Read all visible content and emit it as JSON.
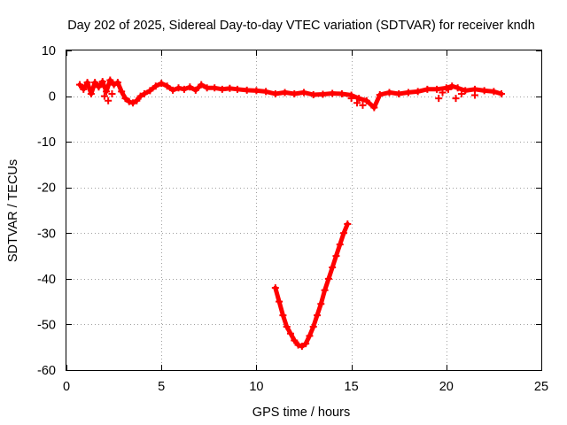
{
  "chart_data": {
    "type": "scatter",
    "title": "Day 202 of 2025, Sidereal Day-to-day VTEC variation (SDTVAR) for receiver kndh",
    "xlabel": "GPS time / hours",
    "ylabel": "SDTVAR / TECUs",
    "xlim": [
      0,
      25
    ],
    "ylim": [
      -60,
      10
    ],
    "xticks": [
      0,
      5,
      10,
      15,
      20,
      25
    ],
    "yticks": [
      10,
      0,
      -10,
      -20,
      -30,
      -40,
      -50,
      -60
    ],
    "grid": true,
    "grid_style": "dotted",
    "legend": "none",
    "series_color": "#ff0000",
    "series": [
      {
        "name": "main track",
        "points": [
          [
            0.7,
            2.5
          ],
          [
            0.9,
            1.5
          ],
          [
            1.1,
            3.0
          ],
          [
            1.3,
            0.5
          ],
          [
            1.5,
            3.0
          ],
          [
            1.7,
            2.0
          ],
          [
            1.9,
            3.2
          ],
          [
            2.1,
            1.0
          ],
          [
            2.3,
            3.5
          ],
          [
            2.5,
            2.5
          ],
          [
            2.7,
            3.0
          ],
          [
            2.9,
            1.0
          ],
          [
            3.1,
            -0.5
          ],
          [
            3.3,
            -1.2
          ],
          [
            3.5,
            -1.5
          ],
          [
            3.7,
            -1.0
          ],
          [
            3.9,
            0.0
          ],
          [
            4.1,
            0.5
          ],
          [
            4.4,
            1.2
          ],
          [
            4.7,
            2.2
          ],
          [
            5.0,
            2.8
          ],
          [
            5.3,
            2.2
          ],
          [
            5.6,
            1.3
          ],
          [
            5.9,
            1.8
          ],
          [
            6.2,
            1.5
          ],
          [
            6.5,
            2.0
          ],
          [
            6.8,
            1.3
          ],
          [
            7.1,
            2.5
          ],
          [
            7.4,
            1.8
          ],
          [
            7.8,
            1.8
          ],
          [
            8.2,
            1.5
          ],
          [
            8.6,
            1.7
          ],
          [
            9.0,
            1.5
          ],
          [
            9.5,
            1.3
          ],
          [
            10.0,
            1.2
          ],
          [
            10.5,
            1.0
          ],
          [
            11.0,
            0.5
          ],
          [
            11.5,
            0.8
          ],
          [
            12.0,
            0.5
          ],
          [
            12.5,
            0.8
          ],
          [
            13.0,
            0.3
          ],
          [
            13.5,
            0.4
          ],
          [
            14.0,
            0.6
          ],
          [
            14.5,
            0.5
          ],
          [
            15.0,
            0.2
          ],
          [
            15.4,
            -0.5
          ],
          [
            15.8,
            -1.0
          ],
          [
            16.2,
            -2.5
          ],
          [
            16.5,
            0.3
          ],
          [
            17.0,
            0.8
          ],
          [
            17.5,
            0.5
          ],
          [
            18.0,
            0.8
          ],
          [
            18.5,
            1.0
          ],
          [
            19.0,
            1.5
          ],
          [
            19.5,
            1.5
          ],
          [
            20.0,
            1.8
          ],
          [
            20.3,
            2.2
          ],
          [
            20.6,
            1.8
          ],
          [
            21.0,
            1.2
          ],
          [
            21.5,
            1.5
          ],
          [
            22.0,
            1.2
          ],
          [
            22.5,
            1.0
          ],
          [
            22.9,
            0.5
          ]
        ]
      },
      {
        "name": "main track (lower branch)",
        "points": [
          [
            2.0,
            0.0
          ],
          [
            2.2,
            -1.0
          ],
          [
            2.4,
            0.5
          ],
          [
            15.0,
            -0.5
          ],
          [
            15.3,
            -1.5
          ],
          [
            15.6,
            -2.0
          ],
          [
            19.6,
            -0.5
          ],
          [
            19.8,
            0.8
          ],
          [
            20.1,
            1.5
          ],
          [
            20.5,
            -0.5
          ],
          [
            20.8,
            0.5
          ],
          [
            21.5,
            0.2
          ]
        ]
      },
      {
        "name": "dip",
        "points": [
          [
            11.0,
            -42
          ],
          [
            11.2,
            -45
          ],
          [
            11.4,
            -48
          ],
          [
            11.6,
            -50.5
          ],
          [
            11.8,
            -52
          ],
          [
            12.0,
            -53.5
          ],
          [
            12.2,
            -54.5
          ],
          [
            12.4,
            -54.8
          ],
          [
            12.6,
            -54.2
          ],
          [
            12.8,
            -52.5
          ],
          [
            13.0,
            -50.5
          ],
          [
            13.2,
            -48
          ],
          [
            13.4,
            -45.5
          ],
          [
            13.6,
            -42.5
          ],
          [
            13.8,
            -40
          ],
          [
            14.0,
            -37.5
          ],
          [
            14.2,
            -35
          ],
          [
            14.4,
            -32.5
          ],
          [
            14.6,
            -30
          ],
          [
            14.8,
            -28
          ]
        ]
      }
    ]
  }
}
